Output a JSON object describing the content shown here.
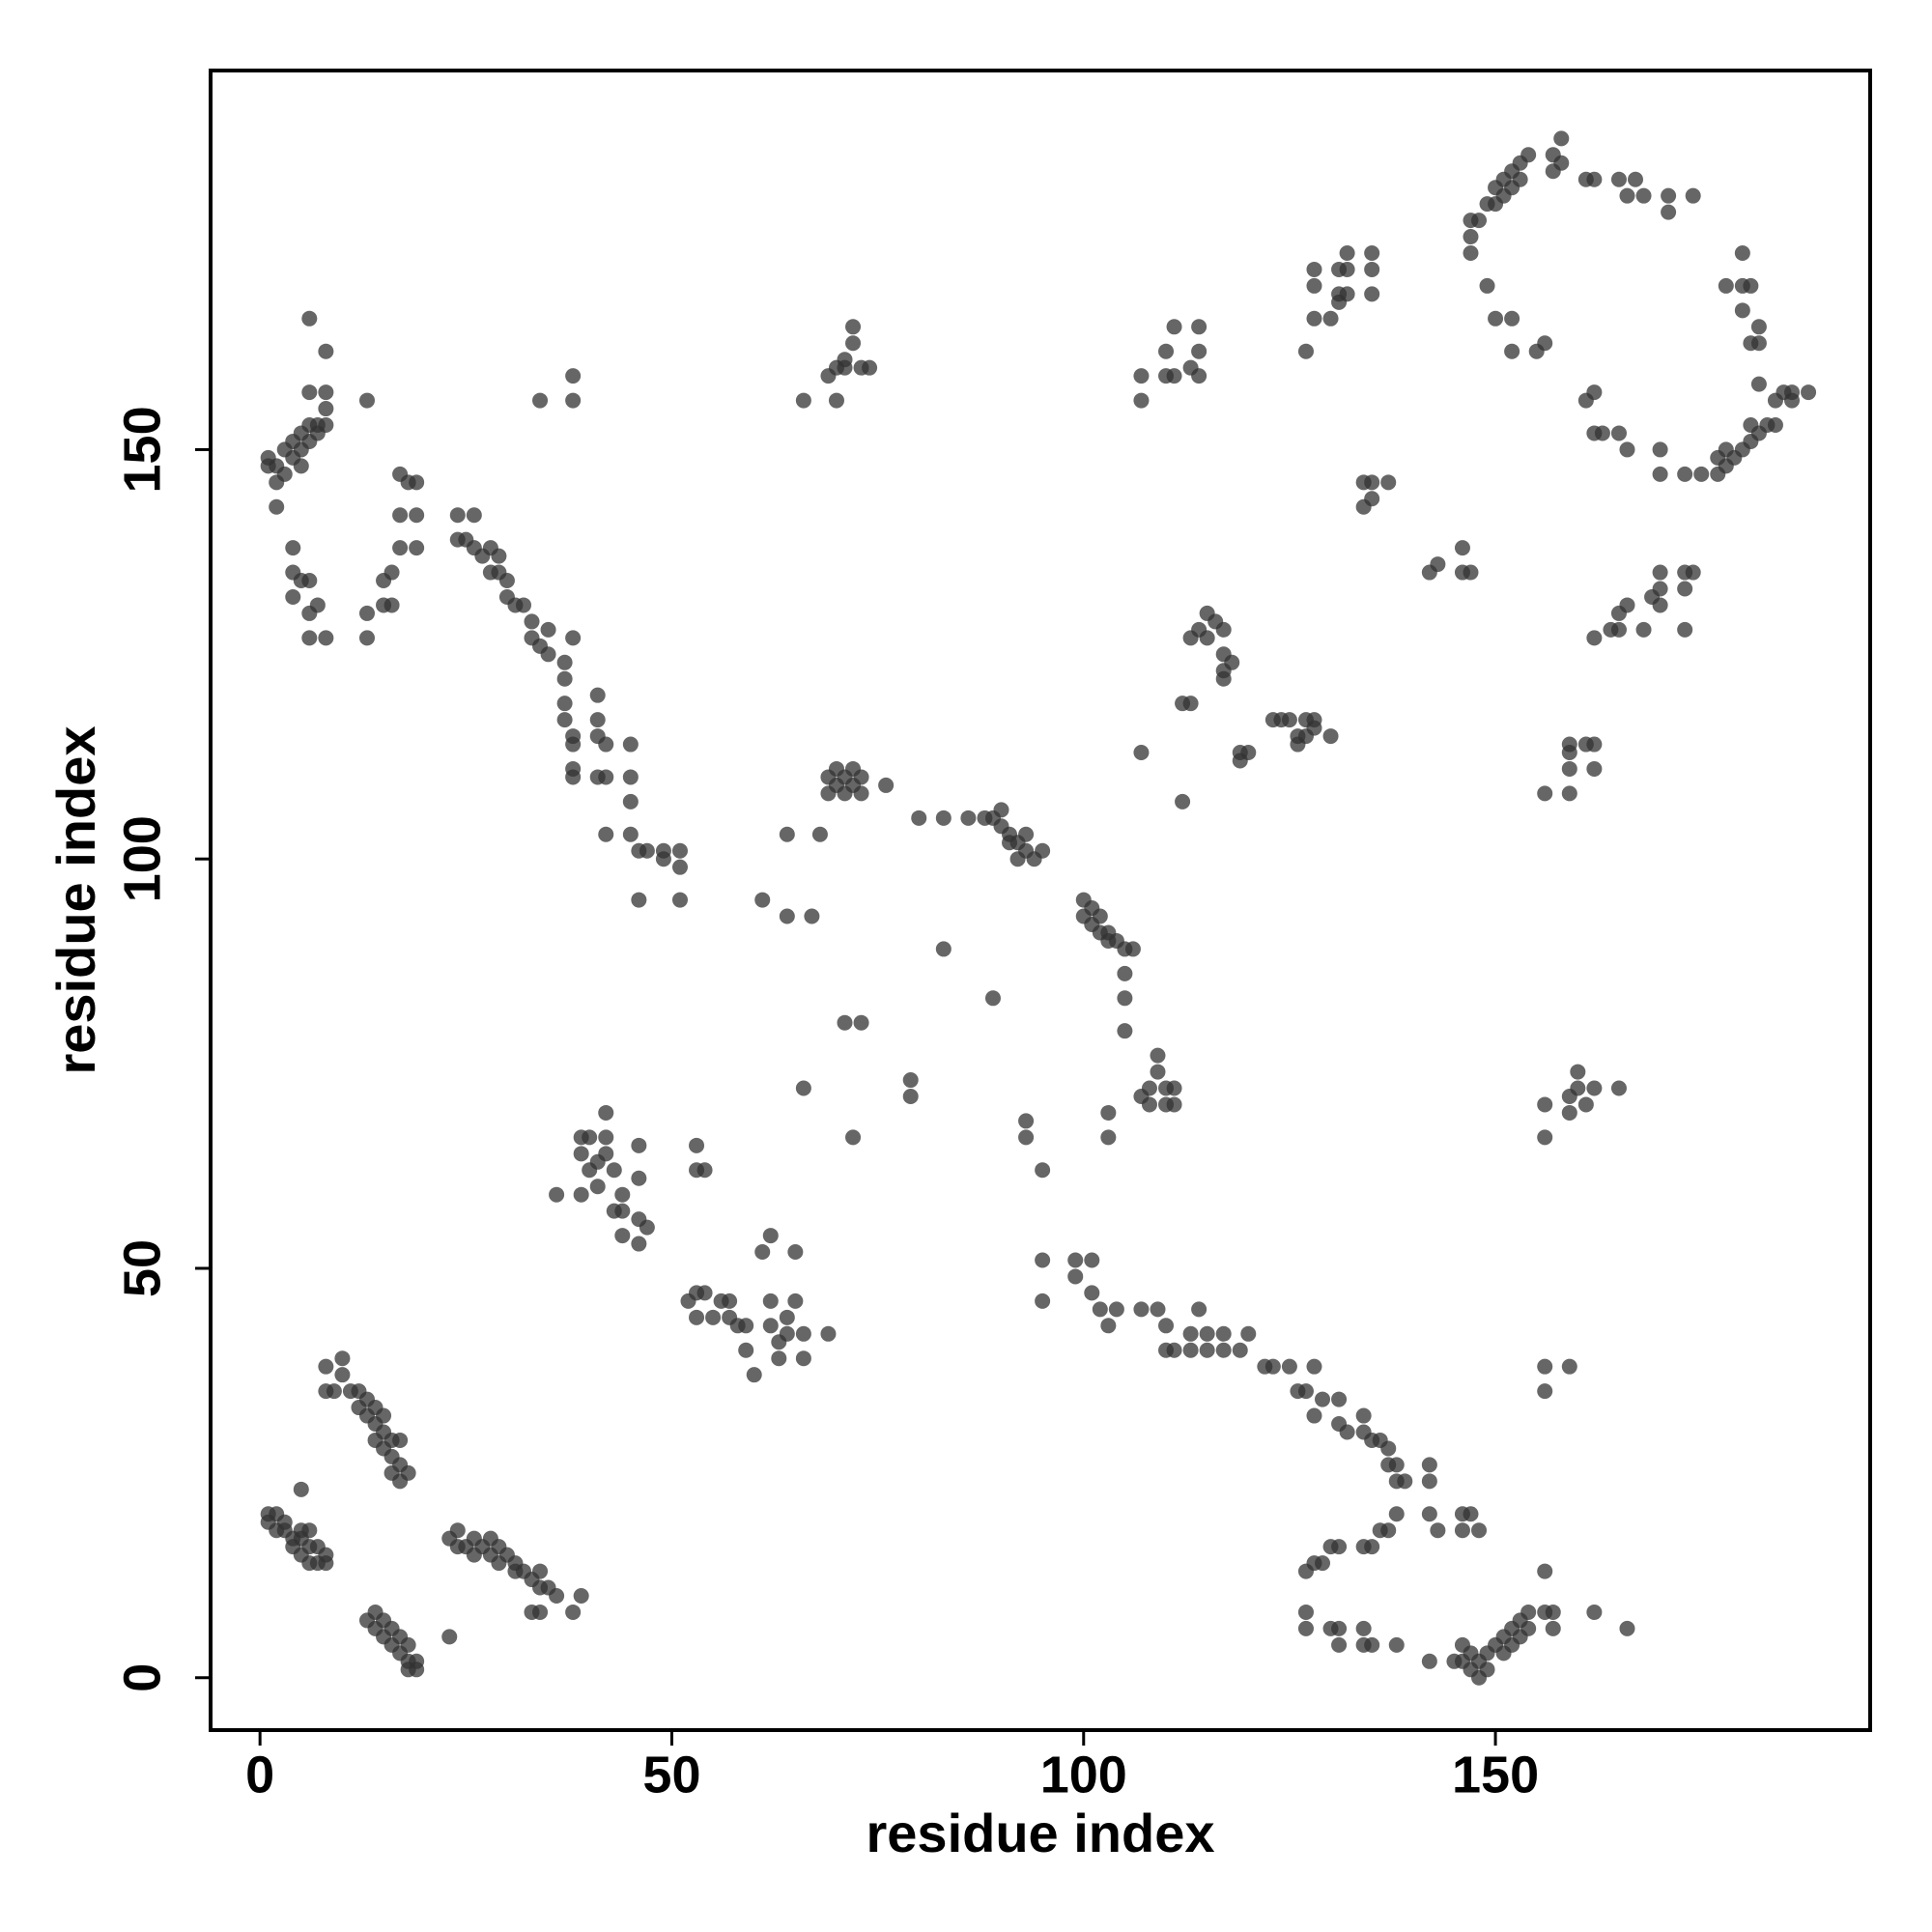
{
  "chart_data": {
    "type": "scatter",
    "xlabel": "residue index",
    "ylabel": "residue index",
    "xlim": [
      -6,
      195.5
    ],
    "ylim": [
      -6.4,
      196.3
    ],
    "xticks": [
      0,
      50,
      100,
      150
    ],
    "yticks": [
      0,
      50,
      100,
      150
    ],
    "color": "#333333",
    "opacity": 0.75,
    "x": [
      1,
      2,
      1,
      2,
      3,
      4,
      5,
      5,
      6,
      4,
      5,
      6,
      6,
      7,
      7,
      8,
      8,
      3,
      5,
      8,
      9,
      10,
      10,
      11,
      12,
      12,
      13,
      13,
      14,
      14,
      15,
      15,
      16,
      16,
      17,
      17,
      16,
      17,
      18,
      8,
      14,
      15,
      13,
      14,
      14,
      15,
      15,
      16,
      16,
      17,
      17,
      18,
      18,
      19,
      19,
      18,
      23,
      23,
      24,
      25,
      26,
      27,
      28,
      28,
      29,
      29,
      30,
      31,
      31,
      32,
      33,
      34,
      34,
      35,
      36,
      33,
      34,
      38,
      39,
      24,
      26,
      36,
      39,
      39,
      40,
      40,
      41,
      42,
      42,
      42,
      43,
      44,
      44,
      44,
      46,
      46,
      47,
      46,
      46,
      39,
      41,
      43,
      52,
      53,
      54,
      53,
      55,
      56,
      57,
      57,
      58,
      59,
      59,
      60,
      61,
      62,
      62,
      62,
      63,
      63,
      64,
      64,
      65,
      65,
      66,
      66,
      69,
      54,
      53,
      53,
      95,
      95,
      99,
      99,
      101,
      101,
      102,
      103,
      104,
      107,
      109,
      110,
      110,
      111,
      113,
      113,
      114,
      115,
      115,
      117,
      117,
      119,
      120,
      122,
      123,
      125,
      126,
      127,
      128,
      128,
      129,
      131,
      131,
      132,
      134,
      134,
      135,
      136,
      137,
      137,
      138,
      138,
      139,
      138,
      142,
      142,
      142,
      143,
      146,
      147,
      146,
      148,
      137,
      136,
      135,
      134,
      131,
      130,
      129,
      128,
      127,
      127,
      127,
      130,
      131,
      131,
      134,
      134,
      135,
      138,
      142,
      145,
      146,
      146,
      147,
      147,
      148,
      148,
      149,
      149,
      150,
      151,
      151,
      152,
      152,
      153,
      153,
      154,
      154,
      156,
      157,
      157,
      162,
      166,
      156,
      156,
      156,
      159,
      79,
      79,
      83,
      89,
      93,
      93,
      95,
      103,
      103,
      105,
      105,
      105,
      105,
      106,
      107,
      108,
      108,
      109,
      109,
      110,
      110,
      111,
      111,
      71,
      72,
      73,
      66,
      64,
      67,
      61,
      64,
      68,
      80,
      83,
      86,
      88,
      89,
      90,
      90,
      91,
      91,
      92,
      92,
      93,
      93,
      94,
      95,
      100,
      100,
      101,
      101,
      102,
      102,
      103,
      103,
      104,
      69,
      69,
      70,
      70,
      71,
      71,
      72,
      72,
      73,
      73,
      76,
      13,
      34,
      38,
      38,
      24,
      26,
      24,
      25,
      26,
      27,
      28,
      29,
      28,
      29,
      30,
      30,
      31,
      32,
      33,
      33,
      34,
      35,
      35,
      37,
      37,
      37,
      37,
      38,
      38,
      38,
      38,
      38,
      41,
      41,
      41,
      41,
      42,
      42,
      42,
      45,
      45,
      45,
      45,
      46,
      47,
      46,
      49,
      49,
      51,
      51,
      51,
      1,
      1,
      2,
      2,
      2,
      3,
      3,
      4,
      4,
      5,
      5,
      5,
      6,
      6,
      7,
      7,
      8,
      8,
      8,
      6,
      6,
      8,
      4,
      4,
      4,
      5,
      6,
      6,
      6,
      8,
      13,
      13,
      15,
      15,
      16,
      17,
      17,
      17,
      18,
      19,
      19,
      19,
      16,
      7,
      66,
      69,
      70,
      70,
      71,
      71,
      72,
      72,
      73,
      74,
      107,
      107,
      110,
      110,
      111,
      111,
      113,
      114,
      114,
      114,
      127,
      128,
      128,
      128,
      130,
      131,
      131,
      132,
      132,
      132,
      135,
      135,
      135,
      131,
      107,
      112,
      112,
      113,
      113,
      114,
      115,
      115,
      116,
      117,
      117,
      117,
      117,
      118,
      119,
      120,
      119,
      123,
      124,
      125,
      126,
      126,
      127,
      127,
      128,
      128,
      130,
      134,
      134,
      135,
      135,
      137,
      142,
      143,
      146,
      147,
      146,
      156,
      159,
      159,
      159,
      159,
      161,
      162,
      162,
      162,
      164,
      165,
      166,
      168,
      169,
      170,
      170,
      170,
      173,
      173,
      174,
      173,
      165,
      156,
      156,
      159,
      159,
      160,
      160,
      161,
      162,
      165,
      147,
      147,
      147,
      148,
      149,
      150,
      150,
      151,
      151,
      152,
      152,
      153,
      153,
      154,
      157,
      157,
      158,
      158,
      161,
      162,
      165,
      166,
      167,
      168,
      171,
      171,
      174,
      149,
      150,
      152,
      152,
      155,
      156,
      161,
      162,
      162,
      163,
      165,
      166,
      170,
      170,
      173,
      175,
      177,
      177,
      178,
      178,
      179,
      180,
      181,
      181,
      182,
      183,
      184,
      184,
      185,
      186,
      186,
      188,
      180,
      180,
      180,
      181,
      181,
      182,
      182,
      178,
      182
    ],
    "values": [
      20,
      20,
      19,
      18,
      18,
      17,
      17,
      18,
      18,
      16,
      15,
      16,
      14,
      14,
      16,
      15,
      14,
      19,
      23,
      38,
      35,
      39,
      37,
      35,
      35,
      33,
      34,
      32,
      33,
      31,
      32,
      30,
      29,
      27,
      29,
      26,
      25,
      24,
      25,
      35,
      29,
      28,
      7,
      6,
      8,
      5,
      7,
      4,
      6,
      5,
      3,
      4,
      2,
      2,
      1,
      1,
      5,
      17,
      18,
      16,
      17,
      16,
      17,
      15,
      16,
      14,
      15,
      14,
      13,
      13,
      12,
      13,
      11,
      11,
      10,
      8,
      8,
      8,
      10,
      16,
      15,
      59,
      59,
      64,
      66,
      62,
      63,
      66,
      64,
      69,
      62,
      59,
      57,
      54,
      56,
      53,
      55,
      65,
      61,
      66,
      60,
      57,
      46,
      47,
      47,
      44,
      44,
      46,
      46,
      44,
      43,
      43,
      40,
      37,
      52,
      54,
      46,
      43,
      41,
      39,
      44,
      42,
      46,
      52,
      42,
      39,
      42,
      62,
      62,
      65,
      51,
      46,
      51,
      49,
      51,
      47,
      45,
      43,
      45,
      45,
      45,
      43,
      40,
      40,
      40,
      42,
      45,
      42,
      40,
      40,
      42,
      40,
      42,
      38,
      38,
      38,
      35,
      35,
      32,
      38,
      34,
      34,
      31,
      30,
      32,
      30,
      29,
      29,
      28,
      26,
      26,
      24,
      24,
      20,
      20,
      24,
      26,
      18,
      18,
      20,
      20,
      18,
      18,
      18,
      16,
      16,
      16,
      16,
      14,
      14,
      13,
      8,
      6,
      6,
      4,
      6,
      6,
      4,
      4,
      4,
      2,
      2,
      2,
      4,
      3,
      1,
      2,
      0,
      1,
      3,
      4,
      5,
      3,
      6,
      4,
      7,
      5,
      8,
      6,
      8,
      8,
      6,
      8,
      6,
      13,
      35,
      38,
      38,
      73,
      71,
      89,
      83,
      68,
      66,
      62,
      69,
      66,
      79,
      83,
      86,
      89,
      89,
      71,
      72,
      70,
      76,
      74,
      72,
      70,
      72,
      70,
      80,
      66,
      80,
      72,
      93,
      93,
      95,
      103,
      103,
      105,
      105,
      105,
      105,
      105,
      106,
      104,
      103,
      102,
      102,
      100,
      101,
      103,
      100,
      101,
      95,
      93,
      94,
      92,
      93,
      91,
      90,
      91,
      90,
      110,
      108,
      111,
      109,
      110,
      108,
      111,
      109,
      110,
      108,
      109,
      156,
      156,
      156,
      159,
      142,
      142,
      139,
      139,
      138,
      137,
      138,
      137,
      135,
      135,
      134,
      132,
      131,
      131,
      129,
      127,
      126,
      128,
      125,
      124,
      122,
      119,
      117,
      115,
      114,
      111,
      110,
      127,
      120,
      117,
      115,
      110,
      114,
      110,
      103,
      114,
      110,
      107,
      103,
      101,
      101,
      95,
      100,
      101,
      99,
      101,
      95,
      149,
      148,
      148,
      146,
      143,
      147,
      150,
      151,
      149,
      152,
      150,
      148,
      153,
      151,
      153,
      152,
      153,
      155,
      157,
      157,
      166,
      162,
      138,
      135,
      132,
      134,
      134,
      130,
      127,
      127,
      130,
      127,
      131,
      134,
      135,
      138,
      142,
      147,
      146,
      146,
      142,
      138,
      131,
      131,
      156,
      159,
      160,
      156,
      161,
      160,
      163,
      165,
      160,
      160,
      159,
      156,
      159,
      162,
      159,
      165,
      160,
      162,
      165,
      159,
      162,
      166,
      170,
      172,
      166,
      169,
      172,
      169,
      172,
      174,
      169,
      172,
      174,
      168,
      113,
      107,
      119,
      119,
      127,
      128,
      130,
      127,
      129,
      128,
      125,
      123,
      122,
      124,
      113,
      113,
      112,
      117,
      117,
      117,
      115,
      114,
      115,
      117,
      117,
      116,
      115,
      143,
      146,
      144,
      146,
      146,
      135,
      136,
      135,
      135,
      138,
      108,
      108,
      111,
      113,
      114,
      114,
      111,
      114,
      127,
      128,
      128,
      131,
      128,
      132,
      133,
      131,
      135,
      128,
      133,
      135,
      135,
      130,
      66,
      70,
      69,
      71,
      72,
      74,
      70,
      72,
      72,
      174,
      176,
      178,
      178,
      180,
      180,
      182,
      181,
      183,
      184,
      182,
      185,
      183,
      186,
      186,
      184,
      188,
      185,
      183,
      183,
      183,
      181,
      183,
      181,
      181,
      179,
      181,
      170,
      166,
      166,
      162,
      162,
      163,
      156,
      157,
      152,
      152,
      152,
      150,
      150,
      147,
      147,
      147,
      147,
      149,
      148,
      150,
      149,
      150,
      151,
      153,
      152,
      153,
      153,
      156,
      157,
      156,
      157,
      157,
      174,
      170,
      167,
      170,
      163,
      163,
      158,
      170,
      165
    ]
  }
}
